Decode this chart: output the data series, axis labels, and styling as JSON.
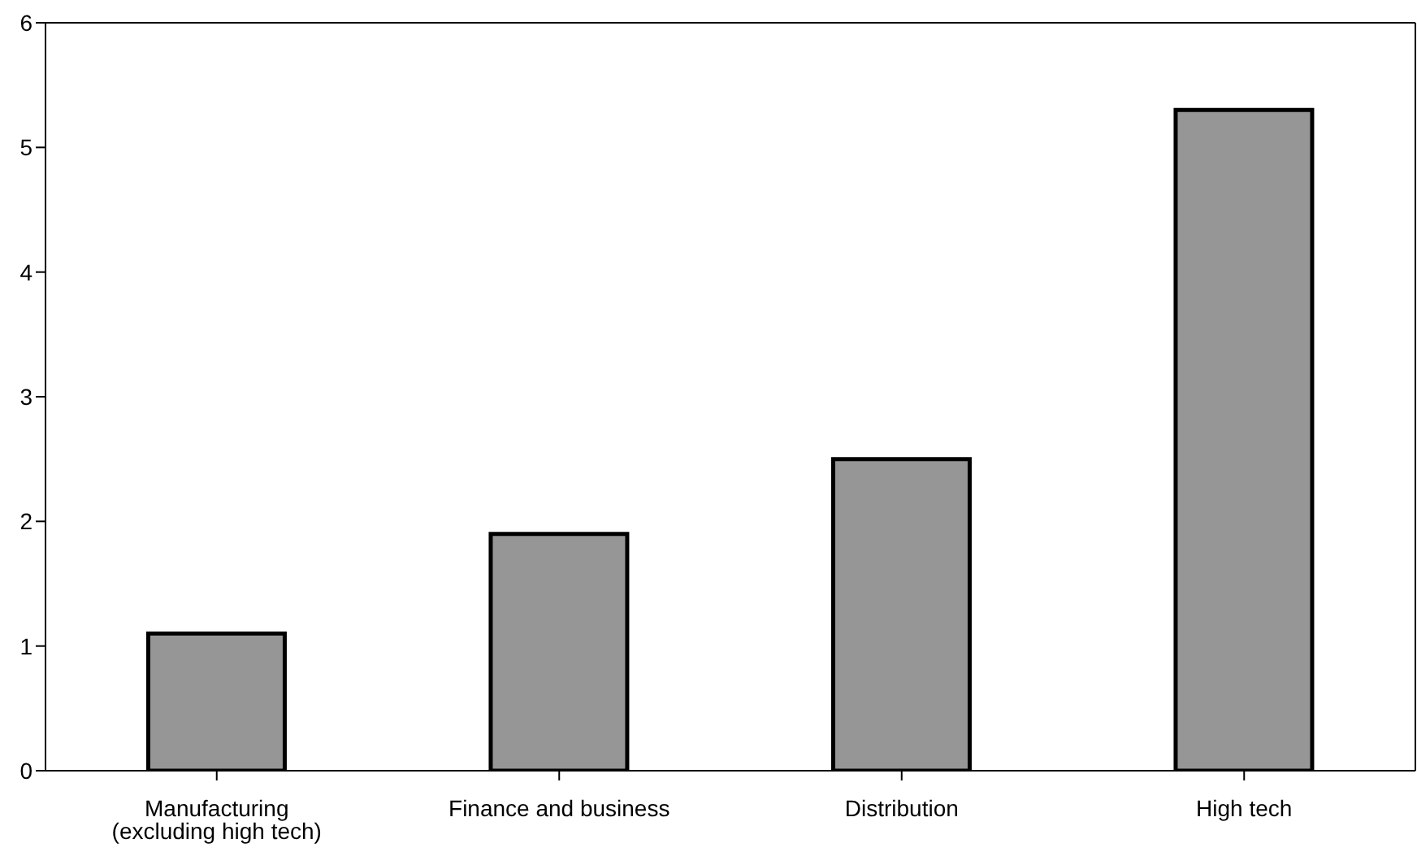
{
  "chart_data": {
    "type": "bar",
    "categories": [
      "Manufacturing (excluding high tech)",
      "Finance and business",
      "Distribution",
      "High tech"
    ],
    "values": [
      1.1,
      1.9,
      2.5,
      5.3
    ],
    "color": "#969696",
    "ylim": [
      0,
      6
    ],
    "yticks": [
      0,
      1,
      2,
      3,
      4,
      5,
      6
    ],
    "grid": false,
    "legend": false
  }
}
